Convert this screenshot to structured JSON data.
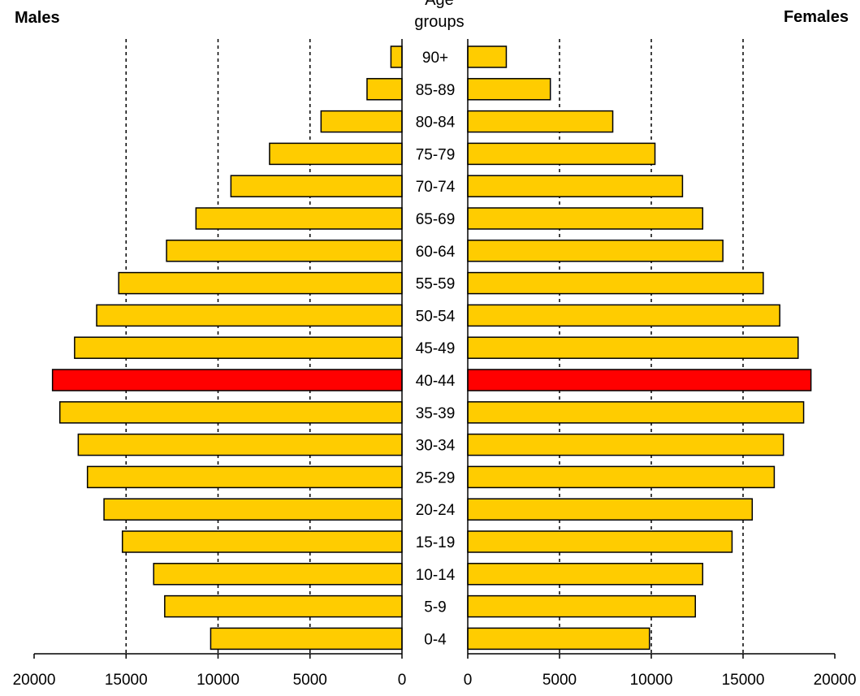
{
  "titles": {
    "left": "Males",
    "right": "Females",
    "center_line1": "Age",
    "center_line2": "groups"
  },
  "chart_data": {
    "type": "bar",
    "orientation": "horizontal-pyramid",
    "categories": [
      "90+",
      "85-89",
      "80-84",
      "75-79",
      "70-74",
      "65-69",
      "60-64",
      "55-59",
      "50-54",
      "45-49",
      "40-44",
      "35-39",
      "30-34",
      "25-29",
      "20-24",
      "15-19",
      "10-14",
      "5-9",
      "0-4"
    ],
    "series": [
      {
        "name": "Males",
        "values": [
          600,
          1900,
          4400,
          7200,
          9300,
          11200,
          12800,
          15400,
          16600,
          17800,
          19000,
          18600,
          17600,
          17100,
          16200,
          15200,
          13500,
          12900,
          10400
        ]
      },
      {
        "name": "Females",
        "values": [
          2100,
          4500,
          7900,
          10200,
          11700,
          12800,
          13900,
          16100,
          17000,
          18000,
          18700,
          18300,
          17200,
          16700,
          15500,
          14400,
          12800,
          12400,
          9900
        ]
      }
    ],
    "highlight_category": "40-44",
    "colors": {
      "bar": "#FFCC00",
      "highlight": "#FF0000",
      "outline": "#000000"
    },
    "xlim": [
      0,
      20000
    ],
    "ticks": [
      20000,
      15000,
      10000,
      5000,
      0
    ],
    "tick_labels_left": [
      "20000",
      "15000",
      "10000",
      "5000",
      "0"
    ],
    "tick_labels_right": [
      "0",
      "5000",
      "10000",
      "15000",
      "20000"
    ],
    "gridlines": [
      5000,
      10000,
      15000
    ],
    "grid_style": "dotted"
  }
}
